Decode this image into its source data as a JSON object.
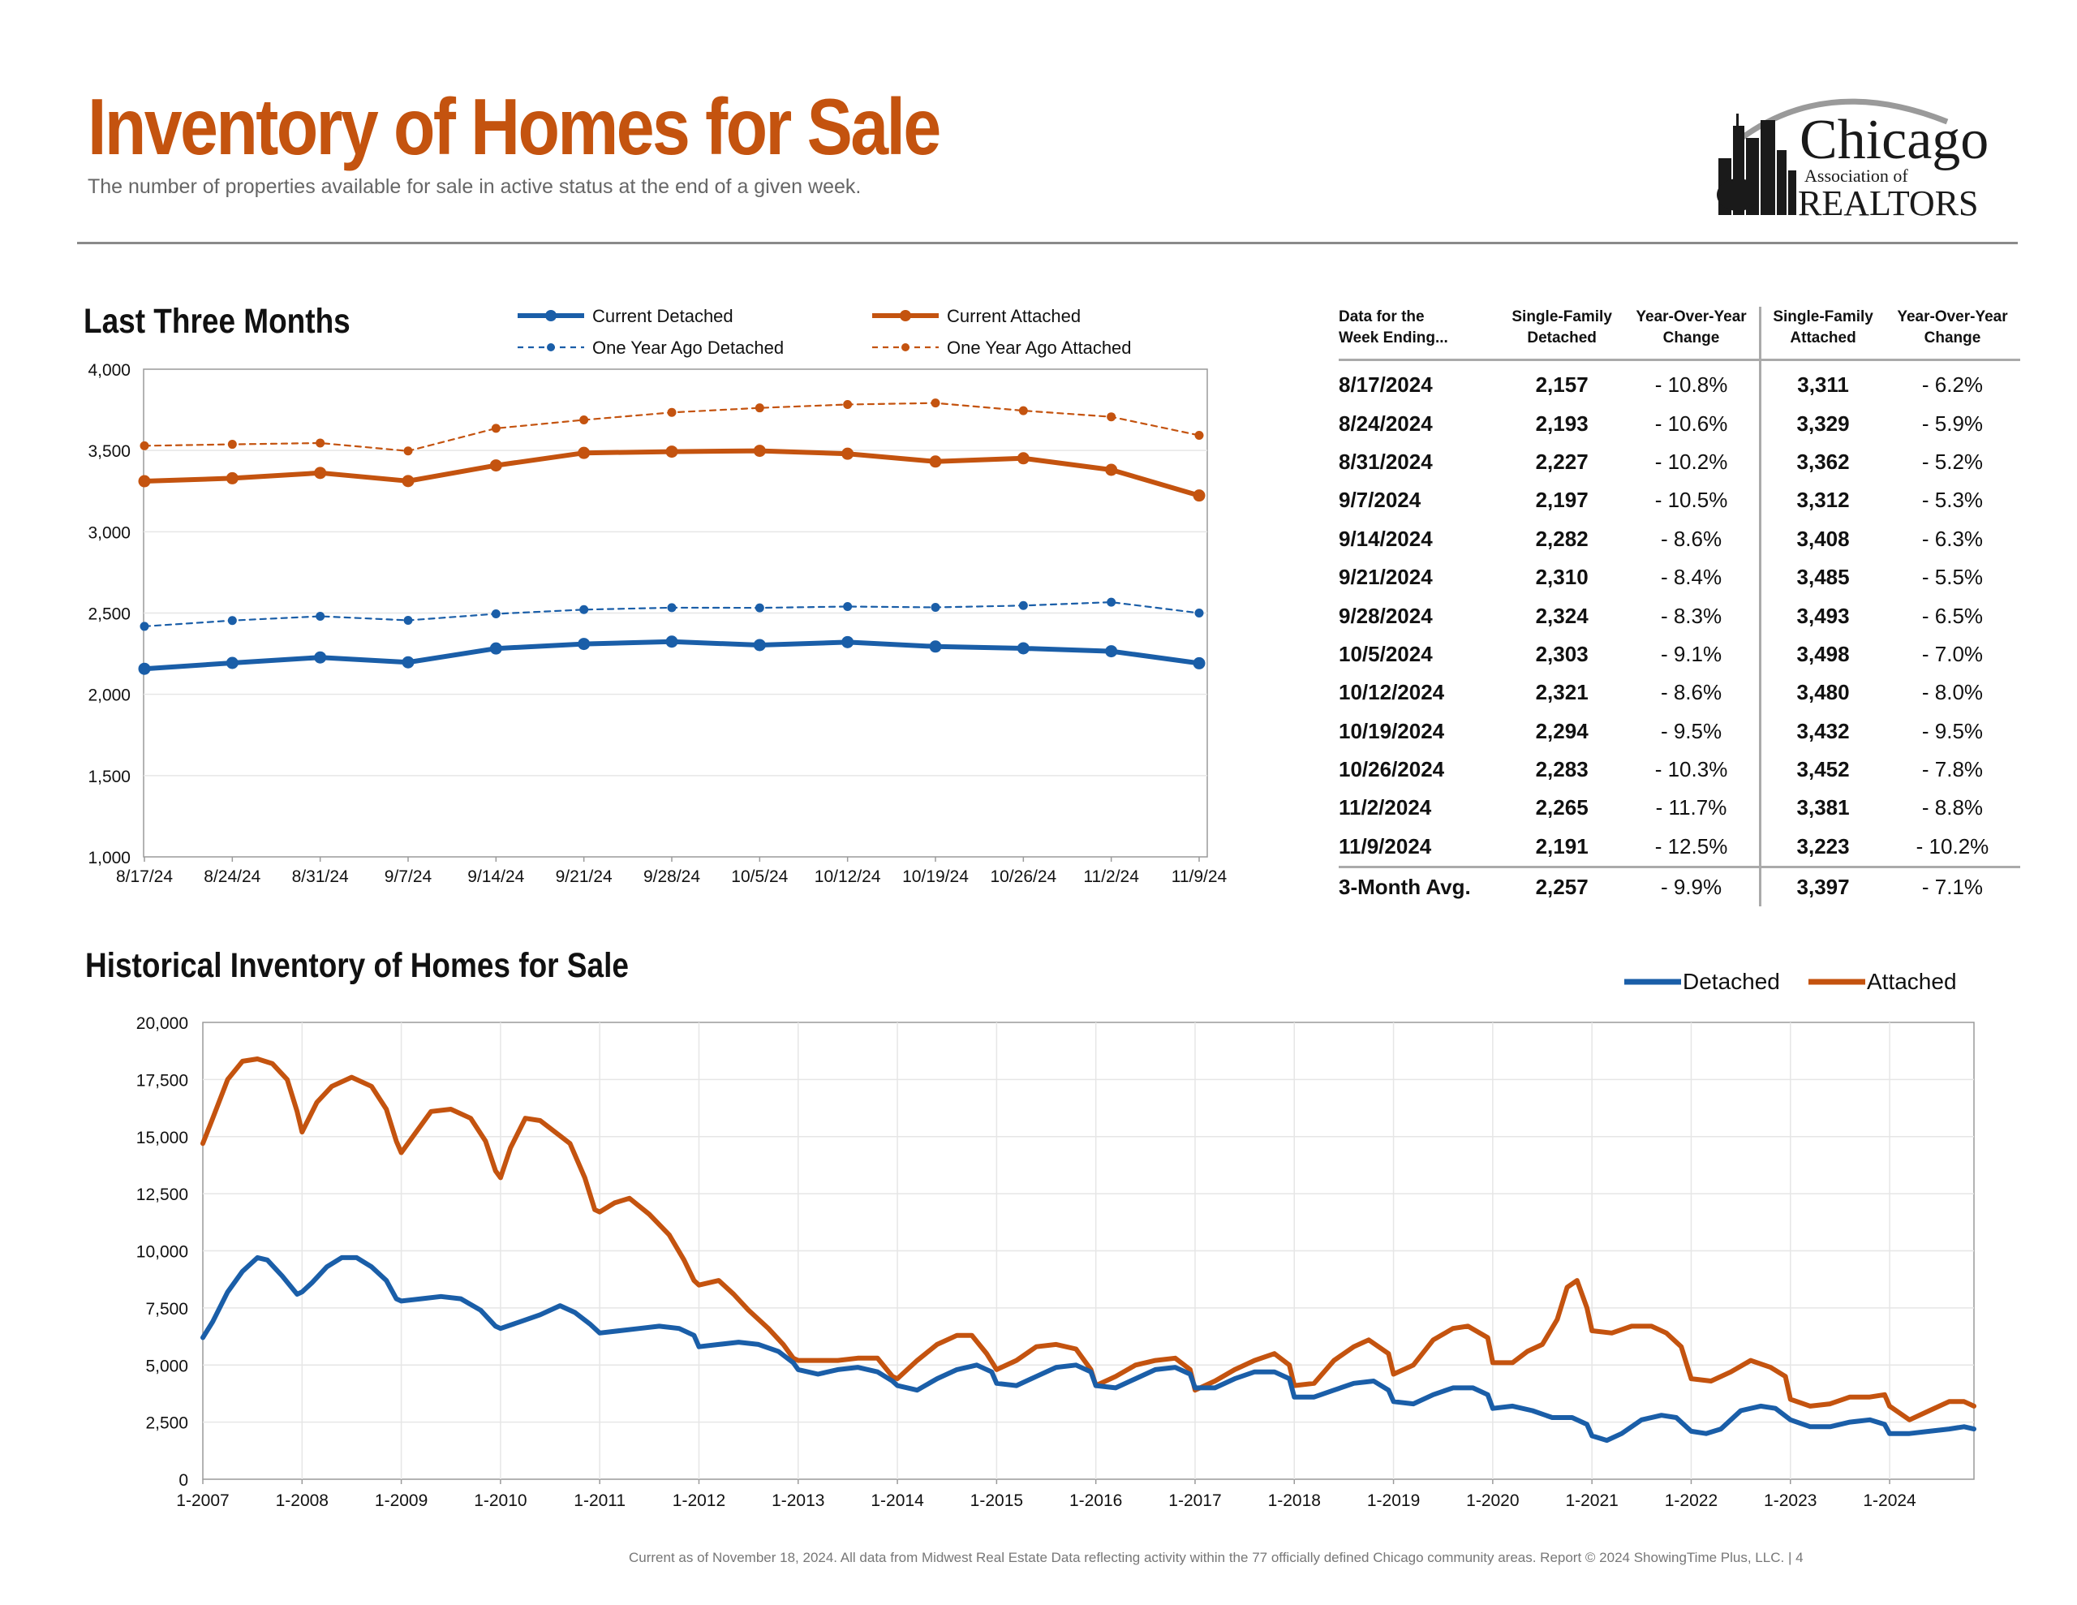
{
  "header": {
    "title": "Inventory of Homes for Sale",
    "subtitle": "The number of properties available for sale in active status at the end of a given week."
  },
  "logo": {
    "name": "Chicago",
    "line2": "Association of",
    "line3": "REALTORS"
  },
  "colors": {
    "detached": "#1a5ea8",
    "attached": "#c4530f",
    "title": "#c4530f",
    "grid": "#e6e6e6",
    "axis": "#999999"
  },
  "chart_data": [
    {
      "id": "recent",
      "type": "line",
      "title": "Last Three Months",
      "categories": [
        "8/17/24",
        "8/24/24",
        "8/31/24",
        "9/7/24",
        "9/14/24",
        "9/21/24",
        "9/28/24",
        "10/5/24",
        "10/12/24",
        "10/19/24",
        "10/26/24",
        "11/2/24",
        "11/9/24"
      ],
      "ylim": [
        1000,
        4000
      ],
      "yticks": [
        "1,000",
        "1,500",
        "2,000",
        "2,500",
        "3,000",
        "3,500",
        "4,000"
      ],
      "grid": true,
      "legend_position": "top",
      "series": [
        {
          "name": "Current Detached",
          "style": "solid",
          "color": "#1a5ea8",
          "values": [
            2157,
            2193,
            2227,
            2197,
            2282,
            2310,
            2324,
            2303,
            2321,
            2294,
            2283,
            2265,
            2191
          ]
        },
        {
          "name": "Current Attached",
          "style": "solid",
          "color": "#c4530f",
          "values": [
            3311,
            3329,
            3362,
            3312,
            3408,
            3485,
            3493,
            3498,
            3480,
            3432,
            3452,
            3381,
            3223
          ]
        },
        {
          "name": "One Year Ago Detached",
          "style": "dashed",
          "color": "#1a5ea8",
          "values": [
            2418,
            2454,
            2480,
            2455,
            2495,
            2521,
            2533,
            2532,
            2540,
            2535,
            2546,
            2567,
            2500
          ]
        },
        {
          "name": "One Year Ago Attached",
          "style": "dashed",
          "color": "#c4530f",
          "values": [
            3529,
            3538,
            3546,
            3497,
            3636,
            3688,
            3734,
            3762,
            3783,
            3792,
            3745,
            3707,
            3593
          ]
        }
      ]
    },
    {
      "id": "historical",
      "type": "line",
      "title": "Historical Inventory of Homes for Sale",
      "x_tick_labels": [
        "1-2007",
        "1-2008",
        "1-2009",
        "1-2010",
        "1-2011",
        "1-2012",
        "1-2013",
        "1-2014",
        "1-2015",
        "1-2016",
        "1-2017",
        "1-2018",
        "1-2019",
        "1-2020",
        "1-2021",
        "1-2022",
        "1-2023",
        "1-2024"
      ],
      "xlim": [
        2007.0,
        2024.85
      ],
      "ylim": [
        0,
        20000
      ],
      "yticks": [
        "0",
        "2,500",
        "5,000",
        "7,500",
        "10,000",
        "12,500",
        "15,000",
        "17,500",
        "20,000"
      ],
      "grid": true,
      "legend_position": "top-right",
      "series": [
        {
          "name": "Detached",
          "color": "#1a5ea8",
          "x": [
            2007.0,
            2007.1,
            2007.25,
            2007.4,
            2007.55,
            2007.65,
            2007.8,
            2007.95,
            2008.0,
            2008.1,
            2008.25,
            2008.4,
            2008.55,
            2008.7,
            2008.85,
            2008.95,
            2009.0,
            2009.2,
            2009.4,
            2009.6,
            2009.8,
            2009.95,
            2010.0,
            2010.2,
            2010.4,
            2010.6,
            2010.75,
            2010.9,
            2011.0,
            2011.2,
            2011.4,
            2011.6,
            2011.8,
            2011.95,
            2012.0,
            2012.2,
            2012.4,
            2012.6,
            2012.8,
            2012.95,
            2013.0,
            2013.2,
            2013.4,
            2013.6,
            2013.8,
            2013.95,
            2014.0,
            2014.2,
            2014.4,
            2014.6,
            2014.8,
            2014.95,
            2015.0,
            2015.2,
            2015.4,
            2015.6,
            2015.8,
            2015.95,
            2016.0,
            2016.2,
            2016.4,
            2016.6,
            2016.8,
            2016.95,
            2017.0,
            2017.2,
            2017.4,
            2017.6,
            2017.8,
            2017.95,
            2018.0,
            2018.2,
            2018.4,
            2018.6,
            2018.8,
            2018.95,
            2019.0,
            2019.2,
            2019.4,
            2019.6,
            2019.8,
            2019.95,
            2020.0,
            2020.2,
            2020.4,
            2020.6,
            2020.8,
            2020.95,
            2021.0,
            2021.15,
            2021.3,
            2021.5,
            2021.7,
            2021.85,
            2022.0,
            2022.15,
            2022.3,
            2022.5,
            2022.7,
            2022.85,
            2023.0,
            2023.2,
            2023.4,
            2023.6,
            2023.8,
            2023.95,
            2024.0,
            2024.2,
            2024.4,
            2024.6,
            2024.75,
            2024.85
          ],
          "y": [
            6200,
            6900,
            8200,
            9100,
            9700,
            9600,
            8900,
            8100,
            8200,
            8600,
            9300,
            9700,
            9700,
            9300,
            8700,
            7900,
            7800,
            7900,
            8000,
            7900,
            7400,
            6700,
            6600,
            6900,
            7200,
            7600,
            7300,
            6800,
            6400,
            6500,
            6600,
            6700,
            6600,
            6300,
            5800,
            5900,
            6000,
            5900,
            5600,
            5100,
            4800,
            4600,
            4800,
            4900,
            4700,
            4300,
            4100,
            3900,
            4400,
            4800,
            5000,
            4700,
            4200,
            4100,
            4500,
            4900,
            5000,
            4700,
            4100,
            4000,
            4400,
            4800,
            4900,
            4600,
            4000,
            4000,
            4400,
            4700,
            4700,
            4400,
            3600,
            3600,
            3900,
            4200,
            4300,
            3900,
            3400,
            3300,
            3700,
            4000,
            4000,
            3700,
            3100,
            3200,
            3000,
            2700,
            2700,
            2400,
            1900,
            1700,
            2000,
            2600,
            2800,
            2700,
            2100,
            2000,
            2200,
            3000,
            3200,
            3100,
            2600,
            2300,
            2300,
            2500,
            2600,
            2400,
            2000,
            2000,
            2100,
            2200,
            2300,
            2200
          ]
        },
        {
          "name": "Attached",
          "color": "#c4530f",
          "x": [
            2007.0,
            2007.1,
            2007.25,
            2007.4,
            2007.55,
            2007.7,
            2007.85,
            2007.95,
            2008.0,
            2008.15,
            2008.3,
            2008.5,
            2008.7,
            2008.85,
            2008.95,
            2009.0,
            2009.15,
            2009.3,
            2009.5,
            2009.7,
            2009.85,
            2009.95,
            2010.0,
            2010.1,
            2010.25,
            2010.4,
            2010.55,
            2010.7,
            2010.85,
            2010.95,
            2011.0,
            2011.15,
            2011.3,
            2011.5,
            2011.7,
            2011.85,
            2011.95,
            2012.0,
            2012.2,
            2012.35,
            2012.5,
            2012.7,
            2012.85,
            2012.95,
            2013.0,
            2013.2,
            2013.4,
            2013.6,
            2013.8,
            2013.95,
            2014.0,
            2014.2,
            2014.4,
            2014.6,
            2014.75,
            2014.9,
            2015.0,
            2015.2,
            2015.4,
            2015.6,
            2015.8,
            2015.95,
            2016.0,
            2016.2,
            2016.4,
            2016.6,
            2016.8,
            2016.95,
            2017.0,
            2017.2,
            2017.4,
            2017.6,
            2017.8,
            2017.95,
            2018.0,
            2018.2,
            2018.4,
            2018.6,
            2018.75,
            2018.95,
            2019.0,
            2019.2,
            2019.4,
            2019.6,
            2019.75,
            2019.95,
            2020.0,
            2020.2,
            2020.35,
            2020.5,
            2020.65,
            2020.75,
            2020.85,
            2020.95,
            2021.0,
            2021.2,
            2021.4,
            2021.6,
            2021.75,
            2021.9,
            2022.0,
            2022.2,
            2022.4,
            2022.6,
            2022.8,
            2022.95,
            2023.0,
            2023.2,
            2023.4,
            2023.6,
            2023.8,
            2023.95,
            2024.0,
            2024.2,
            2024.4,
            2024.6,
            2024.75,
            2024.85
          ],
          "y": [
            14700,
            15800,
            17500,
            18300,
            18400,
            18200,
            17500,
            16100,
            15200,
            16500,
            17200,
            17600,
            17200,
            16200,
            14800,
            14300,
            15200,
            16100,
            16200,
            15800,
            14800,
            13500,
            13200,
            14500,
            15800,
            15700,
            15200,
            14700,
            13200,
            11800,
            11700,
            12100,
            12300,
            11600,
            10700,
            9600,
            8700,
            8500,
            8700,
            8100,
            7400,
            6600,
            5900,
            5300,
            5200,
            5200,
            5200,
            5300,
            5300,
            4500,
            4400,
            5200,
            5900,
            6300,
            6300,
            5500,
            4800,
            5200,
            5800,
            5900,
            5700,
            4800,
            4100,
            4500,
            5000,
            5200,
            5300,
            4800,
            3900,
            4300,
            4800,
            5200,
            5500,
            5000,
            4100,
            4200,
            5200,
            5800,
            6100,
            5500,
            4600,
            5000,
            6100,
            6600,
            6700,
            6200,
            5100,
            5100,
            5600,
            5900,
            7000,
            8400,
            8700,
            7500,
            6500,
            6400,
            6700,
            6700,
            6400,
            5800,
            4400,
            4300,
            4700,
            5200,
            4900,
            4500,
            3500,
            3200,
            3300,
            3600,
            3600,
            3700,
            3200,
            2600,
            3000,
            3400,
            3400,
            3200
          ]
        }
      ]
    }
  ],
  "table": {
    "headers": [
      {
        "l1": "Data for the",
        "l2": "Week Ending..."
      },
      {
        "l1": "Single-Family",
        "l2": "Detached"
      },
      {
        "l1": "Year-Over-Year",
        "l2": "Change"
      },
      {
        "l1": "Single-Family",
        "l2": "Attached"
      },
      {
        "l1": "Year-Over-Year",
        "l2": "Change"
      }
    ],
    "rows": [
      [
        "8/17/2024",
        "2,157",
        "- 10.8%",
        "3,311",
        "- 6.2%"
      ],
      [
        "8/24/2024",
        "2,193",
        "- 10.6%",
        "3,329",
        "- 5.9%"
      ],
      [
        "8/31/2024",
        "2,227",
        "- 10.2%",
        "3,362",
        "- 5.2%"
      ],
      [
        "9/7/2024",
        "2,197",
        "- 10.5%",
        "3,312",
        "- 5.3%"
      ],
      [
        "9/14/2024",
        "2,282",
        "- 8.6%",
        "3,408",
        "- 6.3%"
      ],
      [
        "9/21/2024",
        "2,310",
        "- 8.4%",
        "3,485",
        "- 5.5%"
      ],
      [
        "9/28/2024",
        "2,324",
        "- 8.3%",
        "3,493",
        "- 6.5%"
      ],
      [
        "10/5/2024",
        "2,303",
        "- 9.1%",
        "3,498",
        "- 7.0%"
      ],
      [
        "10/12/2024",
        "2,321",
        "- 8.6%",
        "3,480",
        "- 8.0%"
      ],
      [
        "10/19/2024",
        "2,294",
        "- 9.5%",
        "3,432",
        "- 9.5%"
      ],
      [
        "10/26/2024",
        "2,283",
        "- 10.3%",
        "3,452",
        "- 7.8%"
      ],
      [
        "11/2/2024",
        "2,265",
        "- 11.7%",
        "3,381",
        "- 8.8%"
      ],
      [
        "11/9/2024",
        "2,191",
        "- 12.5%",
        "3,223",
        "- 10.2%"
      ]
    ],
    "avg": [
      "3-Month Avg.",
      "2,257",
      "- 9.9%",
      "3,397",
      "- 7.1%"
    ]
  },
  "footer": "Current as of November 18, 2024.  All data from Midwest Real Estate Data reflecting activity within the 77 officially defined Chicago community areas. Report © 2024 ShowingTime Plus, LLC.  |  4"
}
